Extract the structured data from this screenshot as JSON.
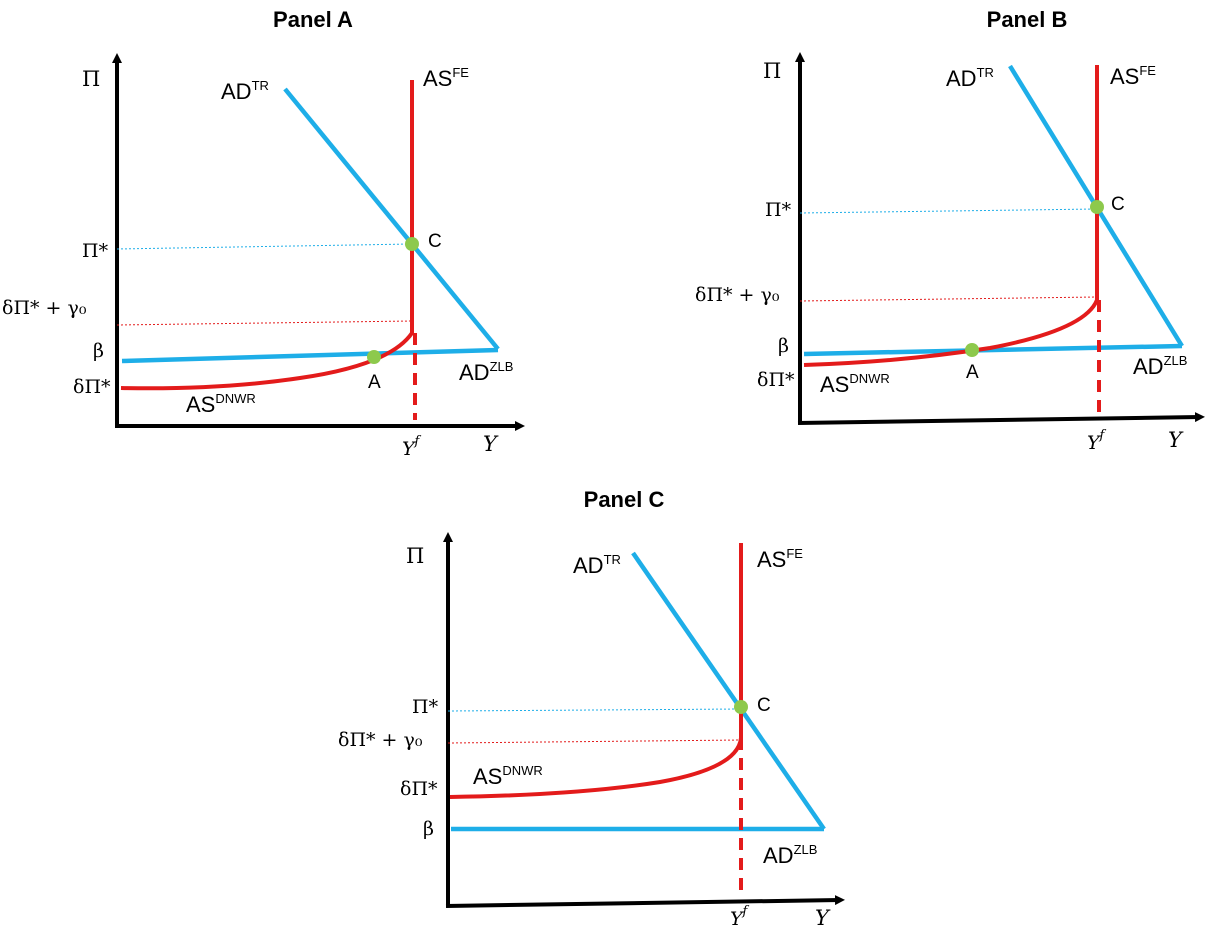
{
  "panels": [
    {
      "title": "Panel A",
      "y_axis_label": "Π",
      "x_axis_label": "Y",
      "tick_labels": {
        "pi_star": "Π*",
        "delta_pi_star_gamma0": "δΠ* + γ₀",
        "beta": "β",
        "delta_pi_star": "δΠ*",
        "y_f": "Y",
        "y_f_sup": "f"
      },
      "curves": {
        "ad_tr": "AD",
        "ad_tr_sup": "TR",
        "as_fe": "AS",
        "as_fe_sup": "FE",
        "ad_zlb": "AD",
        "ad_zlb_sup": "ZLB",
        "as_dnwr": "AS",
        "as_dnwr_sup": "DNWR"
      },
      "points": {
        "a": "A",
        "c": "C"
      }
    },
    {
      "title": "Panel B",
      "y_axis_label": "Π",
      "x_axis_label": "Y",
      "tick_labels": {
        "pi_star": "Π*",
        "delta_pi_star_gamma0": "δΠ* + γ₀",
        "beta": "β",
        "delta_pi_star": "δΠ*",
        "y_f": "Y",
        "y_f_sup": "f"
      },
      "curves": {
        "ad_tr": "AD",
        "ad_tr_sup": "TR",
        "as_fe": "AS",
        "as_fe_sup": "FE",
        "ad_zlb": "AD",
        "ad_zlb_sup": "ZLB",
        "as_dnwr": "AS",
        "as_dnwr_sup": "DNWR"
      },
      "points": {
        "a": "A",
        "c": "C"
      }
    },
    {
      "title": "Panel C",
      "y_axis_label": "Π",
      "x_axis_label": "Y",
      "tick_labels": {
        "pi_star": "Π*",
        "delta_pi_star_gamma0": "δΠ* + γ₀",
        "beta": "β",
        "delta_pi_star": "δΠ*",
        "y_f": "Y",
        "y_f_sup": "f"
      },
      "curves": {
        "ad_tr": "AD",
        "ad_tr_sup": "TR",
        "as_fe": "AS",
        "as_fe_sup": "FE",
        "ad_zlb": "AD",
        "ad_zlb_sup": "ZLB",
        "as_dnwr": "AS",
        "as_dnwr_sup": "DNWR"
      },
      "points": {
        "c": "C"
      }
    }
  ],
  "colors": {
    "as_curve": "#e31b1b",
    "ad_curve": "#1eaee8",
    "equilibrium_point": "#8dc94c",
    "axes": "#000000"
  }
}
